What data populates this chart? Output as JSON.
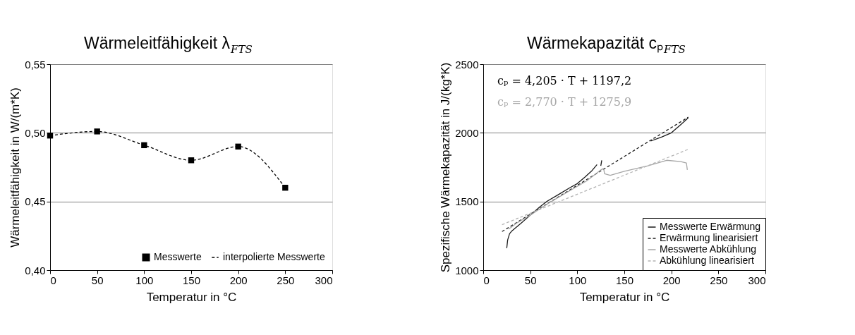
{
  "chart_data": [
    {
      "type": "scatter",
      "title": "Wärmeleitfähigkeit λ$_{FTS}$",
      "xlabel": "Temperatur in °C",
      "ylabel": "Wärmeleitfähigkeit in W/(m*K)",
      "x": [
        0,
        50,
        100,
        150,
        200,
        250
      ],
      "series": [
        {
          "name": "Messwerte",
          "type": "scatter",
          "marker": "square",
          "color": "#000000",
          "values": [
            0.498,
            0.501,
            0.491,
            0.48,
            0.49,
            0.46
          ]
        },
        {
          "name": "interpolierte Messwerte",
          "type": "line",
          "line_style": "dashed",
          "color": "#000000",
          "values": [
            0.498,
            0.501,
            0.491,
            0.48,
            0.49,
            0.46
          ]
        }
      ],
      "xlim": [
        0,
        300
      ],
      "xticks": [
        0,
        50,
        100,
        150,
        200,
        250,
        300
      ],
      "ylim": [
        0.4,
        0.55
      ],
      "yticks": [
        {
          "value": 0.4,
          "label": "0,40"
        },
        {
          "value": 0.45,
          "label": "0,45"
        },
        {
          "value": 0.5,
          "label": "0,50"
        },
        {
          "value": 0.55,
          "label": "0,55"
        }
      ],
      "grid": "y",
      "legend": "bottom right"
    },
    {
      "type": "line",
      "title": "Wärmekapazität cₚ$_{FTS}$",
      "xlabel": "Temperatur in °C",
      "ylabel": "Spezifische Wärmekapazität in J/(kg*K)",
      "series": [
        {
          "name": "Messwerte Erwärmung",
          "line_style": "solid",
          "color": "#1a1a1a",
          "x": [
            25,
            26,
            28,
            30,
            40,
            50,
            60,
            68,
            80,
            92,
            100,
            108,
            115,
            121,
            null,
            125,
            126,
            null,
            178,
            190,
            200,
            210,
            218
          ],
          "values": [
            1160,
            1220,
            1265,
            1282,
            1340,
            1400,
            1460,
            1502,
            1550,
            1600,
            1630,
            1677,
            1720,
            1769,
            null,
            1760,
            1800,
            null,
            1940,
            1970,
            2000,
            2060,
            2110
          ]
        },
        {
          "name": "Erwärmung linearisiert",
          "line_style": "dashed",
          "color": "#1a1a1a",
          "x": [
            20,
            218
          ],
          "values": [
            1281,
            2114
          ]
        },
        {
          "name": "Messwerte Abkühlung",
          "line_style": "solid",
          "color": "#a6a6a6",
          "x": [
            27,
            29,
            35,
            50,
            70,
            90,
            110,
            125,
            128,
            129,
            135,
            150,
            175,
            195,
            210,
            216,
            217
          ],
          "values": [
            1300,
            1308,
            1340,
            1400,
            1490,
            1570,
            1650,
            1730,
            1740,
            1702,
            1690,
            1720,
            1760,
            1800,
            1790,
            1780,
            1730
          ]
        },
        {
          "name": "Abkühlung linearisiert",
          "line_style": "dashed",
          "color": "#b3b3b3",
          "x": [
            20,
            218
          ],
          "values": [
            1331,
            1880
          ]
        }
      ],
      "annotations": [
        "cₚ = 4,205 · T + 1197,2",
        "cₚ = 2,770 · T + 1275,9"
      ],
      "xlim": [
        0,
        300
      ],
      "xticks": [
        0,
        50,
        100,
        150,
        200,
        250,
        300
      ],
      "ylim": [
        1000,
        2500
      ],
      "yticks": [
        1000,
        1500,
        2000,
        2500
      ],
      "grid": "y",
      "legend": "bottom right"
    }
  ]
}
